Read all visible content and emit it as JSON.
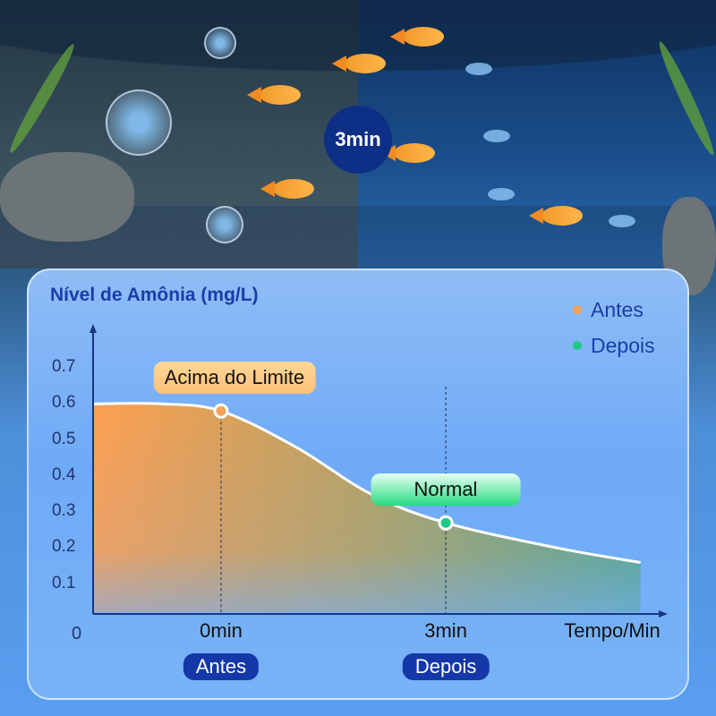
{
  "badge": {
    "label": "3min"
  },
  "chart_data": {
    "type": "area",
    "title": "Nível de Amônia (mg/L)",
    "xlabel": "Tempo/Min",
    "ylabel": "",
    "yticks": [
      "0.1",
      "0.2",
      "0.3",
      "0.4",
      "0.5",
      "0.6",
      "0.7"
    ],
    "origin_label": "0",
    "ylim": [
      0,
      0.75
    ],
    "xlim": [
      -1.7,
      6
    ],
    "xtick_labels": [
      {
        "x": 0,
        "label": "0min"
      },
      {
        "x": 3,
        "label": "3min"
      }
    ],
    "curve": {
      "x": [
        -1.7,
        -0.8,
        0,
        1,
        2,
        3,
        4.5,
        5.6
      ],
      "y": [
        0.6,
        0.6,
        0.58,
        0.48,
        0.35,
        0.27,
        0.2,
        0.16
      ]
    },
    "points": [
      {
        "name": "Antes",
        "x": 0,
        "y": 0.58,
        "color": "#f5a25a",
        "annotation": "Acima do Limite",
        "tag": "Antes"
      },
      {
        "name": "Depois",
        "x": 3,
        "y": 0.27,
        "color": "#21c987",
        "annotation": "Normal",
        "tag": "Depois"
      }
    ],
    "legend": {
      "position": "top-right",
      "items": [
        {
          "label": "Antes",
          "color": "#f5a25a"
        },
        {
          "label": "Depois",
          "color": "#21c987"
        }
      ]
    },
    "grid": false
  }
}
